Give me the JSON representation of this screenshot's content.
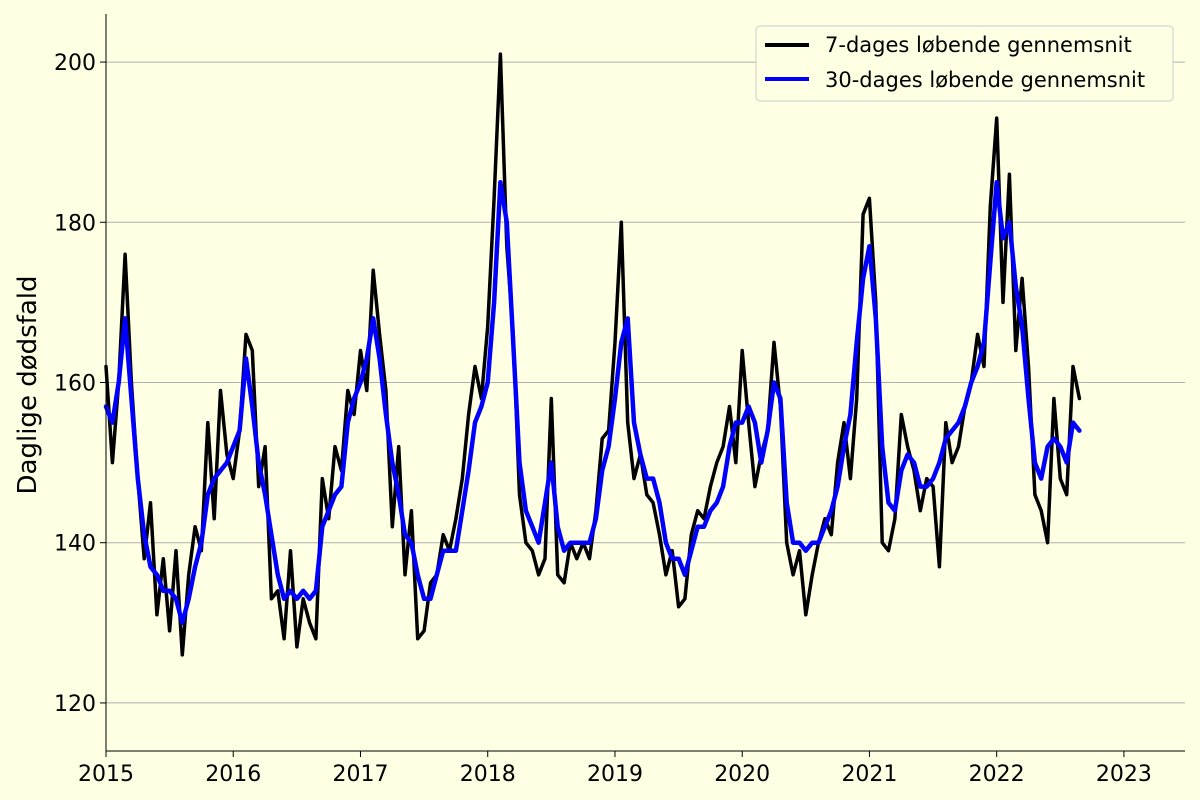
{
  "chart_data": {
    "type": "line",
    "title": "",
    "xlabel": "",
    "ylabel": "Daglige dødsfald",
    "xlim": [
      2015.0,
      2023.48
    ],
    "ylim": [
      114,
      206
    ],
    "xticks": [
      2015,
      2016,
      2017,
      2018,
      2019,
      2020,
      2021,
      2022,
      2023
    ],
    "xtick_labels": [
      "2015",
      "2016",
      "2017",
      "2018",
      "2019",
      "2020",
      "2021",
      "2022",
      "2023"
    ],
    "yticks": [
      120,
      140,
      160,
      180,
      200
    ],
    "ytick_labels": [
      "120",
      "140",
      "160",
      "180",
      "200"
    ],
    "grid": "horizontal",
    "legend_position": "top-right",
    "series": [
      {
        "name": "7-dages løbende gennemsnit",
        "color": "#000000",
        "x": [
          2015.0,
          2015.05,
          2015.1,
          2015.15,
          2015.2,
          2015.25,
          2015.3,
          2015.35,
          2015.4,
          2015.45,
          2015.5,
          2015.55,
          2015.6,
          2015.65,
          2015.7,
          2015.75,
          2015.8,
          2015.85,
          2015.9,
          2015.95,
          2016.0,
          2016.05,
          2016.1,
          2016.15,
          2016.2,
          2016.25,
          2016.3,
          2016.35,
          2016.4,
          2016.45,
          2016.5,
          2016.55,
          2016.6,
          2016.65,
          2016.7,
          2016.75,
          2016.8,
          2016.85,
          2016.9,
          2016.95,
          2017.0,
          2017.05,
          2017.1,
          2017.15,
          2017.2,
          2017.25,
          2017.3,
          2017.35,
          2017.4,
          2017.45,
          2017.5,
          2017.55,
          2017.6,
          2017.65,
          2017.7,
          2017.75,
          2017.8,
          2017.85,
          2017.9,
          2017.95,
          2018.0,
          2018.05,
          2018.1,
          2018.15,
          2018.2,
          2018.25,
          2018.3,
          2018.35,
          2018.4,
          2018.45,
          2018.5,
          2018.55,
          2018.6,
          2018.65,
          2018.7,
          2018.75,
          2018.8,
          2018.85,
          2018.9,
          2018.95,
          2019.0,
          2019.05,
          2019.1,
          2019.15,
          2019.2,
          2019.25,
          2019.3,
          2019.35,
          2019.4,
          2019.45,
          2019.5,
          2019.55,
          2019.6,
          2019.65,
          2019.7,
          2019.75,
          2019.8,
          2019.85,
          2019.9,
          2019.95,
          2020.0,
          2020.05,
          2020.1,
          2020.15,
          2020.2,
          2020.25,
          2020.3,
          2020.35,
          2020.4,
          2020.45,
          2020.5,
          2020.55,
          2020.6,
          2020.65,
          2020.7,
          2020.75,
          2020.8,
          2020.85,
          2020.9,
          2020.95,
          2021.0,
          2021.05,
          2021.1,
          2021.15,
          2021.2,
          2021.25,
          2021.3,
          2021.35,
          2021.4,
          2021.45,
          2021.5,
          2021.55,
          2021.6,
          2021.65,
          2021.7,
          2021.75,
          2021.8,
          2021.85,
          2021.9,
          2021.95,
          2022.0,
          2022.05,
          2022.1,
          2022.15,
          2022.2,
          2022.25,
          2022.3,
          2022.35,
          2022.4,
          2022.45,
          2022.5,
          2022.55,
          2022.6,
          2022.65
        ],
        "values": [
          162,
          150,
          160,
          176,
          160,
          148,
          138,
          145,
          131,
          138,
          129,
          139,
          126,
          136,
          142,
          139,
          155,
          143,
          159,
          151,
          148,
          154,
          166,
          164,
          147,
          152,
          133,
          134,
          128,
          139,
          127,
          133,
          130,
          128,
          148,
          143,
          152,
          149,
          159,
          156,
          164,
          159,
          174,
          166,
          159,
          142,
          152,
          136,
          144,
          128,
          129,
          135,
          136,
          141,
          139,
          143,
          148,
          156,
          162,
          158,
          167,
          183,
          201,
          177,
          166,
          146,
          140,
          139,
          136,
          138,
          158,
          136,
          135,
          140,
          138,
          140,
          138,
          144,
          153,
          154,
          165,
          180,
          155,
          148,
          151,
          146,
          145,
          141,
          136,
          139,
          132,
          133,
          141,
          144,
          143,
          147,
          150,
          152,
          157,
          150,
          164,
          155,
          147,
          151,
          154,
          165,
          157,
          140,
          136,
          139,
          131,
          136,
          140,
          143,
          141,
          150,
          155,
          148,
          158,
          181,
          183,
          170,
          140,
          139,
          143,
          156,
          152,
          149,
          144,
          148,
          147,
          137,
          155,
          150,
          152,
          157,
          160,
          166,
          162,
          182,
          193,
          170,
          186,
          164,
          173,
          162,
          146,
          144,
          140,
          158,
          148,
          146,
          162,
          158
        ]
      },
      {
        "name": "30-dages løbende gennemsnit",
        "color": "#0000ff",
        "x": [
          2015.0,
          2015.05,
          2015.1,
          2015.15,
          2015.2,
          2015.25,
          2015.3,
          2015.35,
          2015.4,
          2015.45,
          2015.5,
          2015.55,
          2015.6,
          2015.65,
          2015.7,
          2015.75,
          2015.8,
          2015.85,
          2015.9,
          2015.95,
          2016.0,
          2016.05,
          2016.1,
          2016.15,
          2016.2,
          2016.25,
          2016.3,
          2016.35,
          2016.4,
          2016.45,
          2016.5,
          2016.55,
          2016.6,
          2016.65,
          2016.7,
          2016.75,
          2016.8,
          2016.85,
          2016.9,
          2016.95,
          2017.0,
          2017.05,
          2017.1,
          2017.15,
          2017.2,
          2017.25,
          2017.3,
          2017.35,
          2017.4,
          2017.45,
          2017.5,
          2017.55,
          2017.6,
          2017.65,
          2017.7,
          2017.75,
          2017.8,
          2017.85,
          2017.9,
          2017.95,
          2018.0,
          2018.05,
          2018.1,
          2018.15,
          2018.2,
          2018.25,
          2018.3,
          2018.35,
          2018.4,
          2018.45,
          2018.5,
          2018.55,
          2018.6,
          2018.65,
          2018.7,
          2018.75,
          2018.8,
          2018.85,
          2018.9,
          2018.95,
          2019.0,
          2019.05,
          2019.1,
          2019.15,
          2019.2,
          2019.25,
          2019.3,
          2019.35,
          2019.4,
          2019.45,
          2019.5,
          2019.55,
          2019.6,
          2019.65,
          2019.7,
          2019.75,
          2019.8,
          2019.85,
          2019.9,
          2019.95,
          2020.0,
          2020.05,
          2020.1,
          2020.15,
          2020.2,
          2020.25,
          2020.3,
          2020.35,
          2020.4,
          2020.45,
          2020.5,
          2020.55,
          2020.6,
          2020.65,
          2020.7,
          2020.75,
          2020.8,
          2020.85,
          2020.9,
          2020.95,
          2021.0,
          2021.05,
          2021.1,
          2021.15,
          2021.2,
          2021.25,
          2021.3,
          2021.35,
          2021.4,
          2021.45,
          2021.5,
          2021.55,
          2021.6,
          2021.65,
          2021.7,
          2021.75,
          2021.8,
          2021.85,
          2021.9,
          2021.95,
          2022.0,
          2022.05,
          2022.1,
          2022.15,
          2022.2,
          2022.25,
          2022.3,
          2022.35,
          2022.4,
          2022.45,
          2022.5,
          2022.55,
          2022.6,
          2022.65
        ],
        "values": [
          157,
          155,
          160,
          168,
          158,
          148,
          141,
          137,
          136,
          134,
          134,
          133,
          130,
          133,
          137,
          140,
          146,
          148,
          149,
          150,
          152,
          154,
          163,
          157,
          150,
          146,
          141,
          136,
          133,
          134,
          133,
          134,
          133,
          134,
          142,
          144,
          146,
          147,
          155,
          158,
          160,
          163,
          168,
          163,
          156,
          150,
          146,
          141,
          140,
          136,
          133,
          133,
          136,
          139,
          139,
          139,
          144,
          149,
          155,
          157,
          160,
          170,
          185,
          180,
          165,
          150,
          144,
          142,
          140,
          145,
          150,
          142,
          139,
          140,
          140,
          140,
          140,
          143,
          149,
          152,
          158,
          165,
          168,
          155,
          151,
          148,
          148,
          145,
          140,
          138,
          138,
          136,
          139,
          142,
          142,
          144,
          145,
          147,
          152,
          155,
          155,
          157,
          155,
          150,
          154,
          160,
          158,
          145,
          140,
          140,
          139,
          140,
          140,
          142,
          144,
          147,
          152,
          156,
          165,
          173,
          177,
          168,
          152,
          145,
          144,
          149,
          151,
          150,
          147,
          147,
          148,
          150,
          153,
          154,
          155,
          157,
          160,
          162,
          165,
          175,
          185,
          178,
          180,
          172,
          167,
          158,
          150,
          148,
          152,
          153,
          152,
          150,
          155,
          154
        ]
      }
    ]
  }
}
